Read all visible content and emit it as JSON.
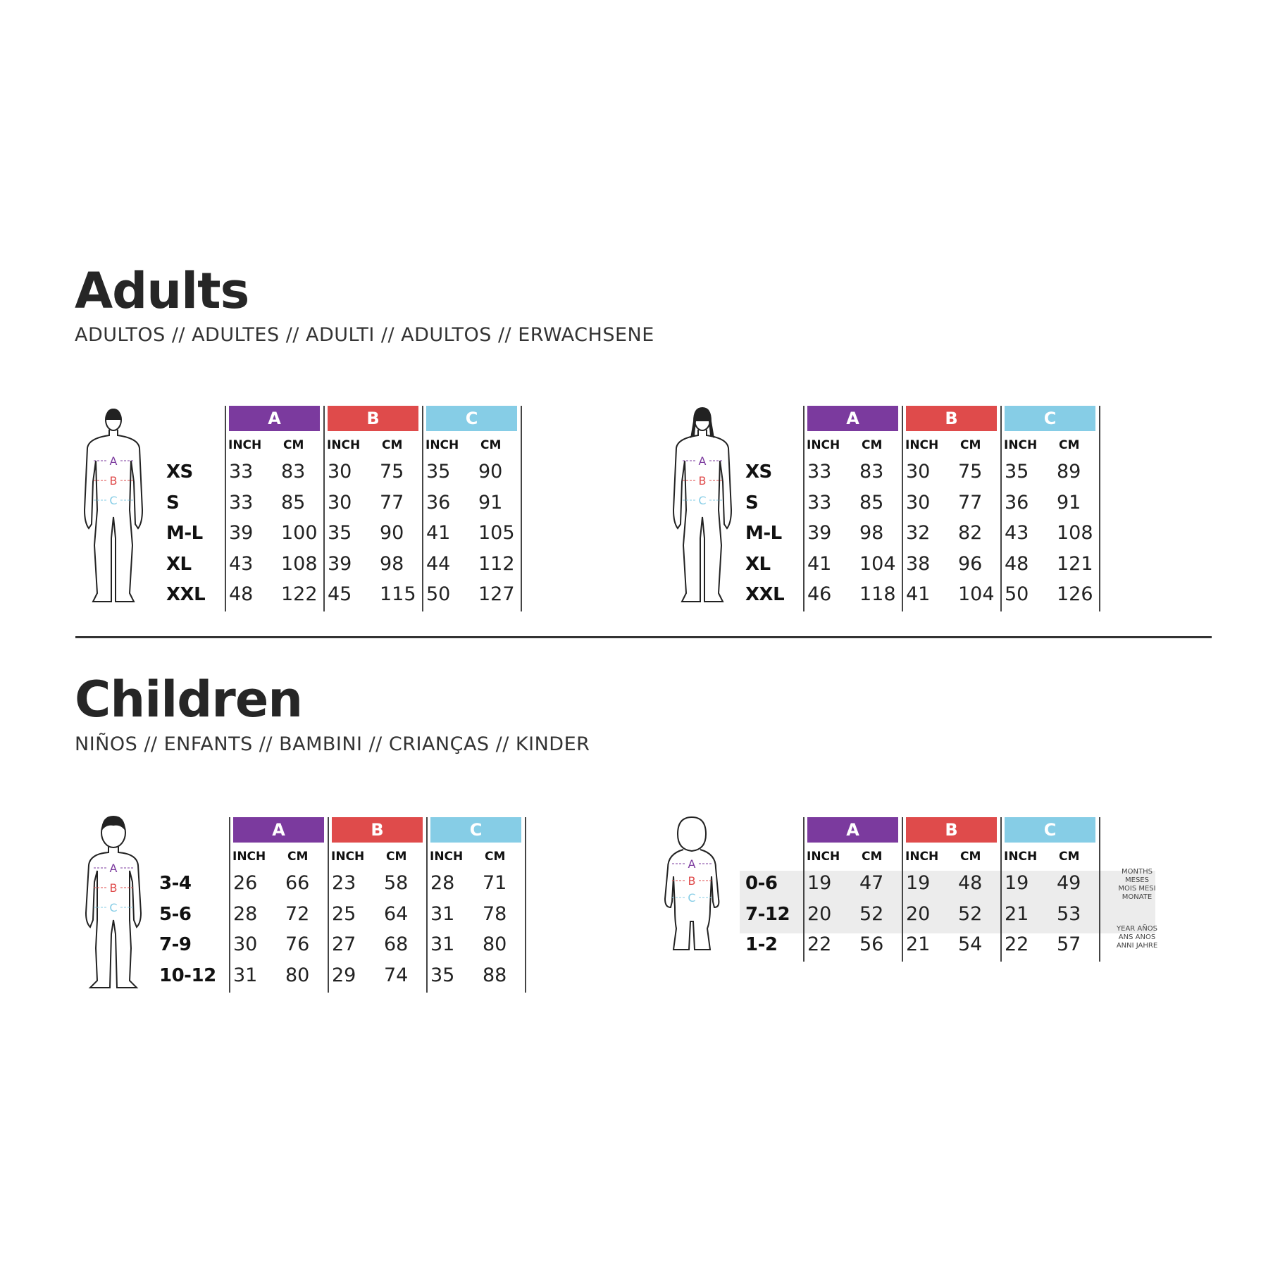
{
  "colors": {
    "A": "#7b3a9e",
    "B": "#df4b4b",
    "C": "#86cde6"
  },
  "adults": {
    "title": "Adults",
    "subtitle": "ADULTOS // ADULTES // ADULTI // ADULTOS // ERWACHSENE",
    "tables": [
      {
        "figure": "male-figure",
        "headers": [
          "A",
          "B",
          "C"
        ],
        "units": [
          "INCH",
          "CM",
          "INCH",
          "CM",
          "INCH",
          "CM"
        ],
        "rows": [
          {
            "size": "XS",
            "values": [
              "33",
              "83",
              "30",
              "75",
              "35",
              "90"
            ]
          },
          {
            "size": "S",
            "values": [
              "33",
              "85",
              "30",
              "77",
              "36",
              "91"
            ]
          },
          {
            "size": "M-L",
            "values": [
              "39",
              "100",
              "35",
              "90",
              "41",
              "105"
            ]
          },
          {
            "size": "XL",
            "values": [
              "43",
              "108",
              "39",
              "98",
              "44",
              "112"
            ]
          },
          {
            "size": "XXL",
            "values": [
              "48",
              "122",
              "45",
              "115",
              "50",
              "127"
            ]
          }
        ]
      },
      {
        "figure": "female-figure",
        "headers": [
          "A",
          "B",
          "C"
        ],
        "units": [
          "INCH",
          "CM",
          "INCH",
          "CM",
          "INCH",
          "CM"
        ],
        "rows": [
          {
            "size": "XS",
            "values": [
              "33",
              "83",
              "30",
              "75",
              "35",
              "89"
            ]
          },
          {
            "size": "S",
            "values": [
              "33",
              "85",
              "30",
              "77",
              "36",
              "91"
            ]
          },
          {
            "size": "M-L",
            "values": [
              "39",
              "98",
              "32",
              "82",
              "43",
              "108"
            ]
          },
          {
            "size": "XL",
            "values": [
              "41",
              "104",
              "38",
              "96",
              "48",
              "121"
            ]
          },
          {
            "size": "XXL",
            "values": [
              "46",
              "118",
              "41",
              "104",
              "50",
              "126"
            ]
          }
        ]
      }
    ]
  },
  "children": {
    "title": "Children",
    "subtitle": "NIÑOS // ENFANTS // BAMBINI // CRIANÇAS // KINDER",
    "tables": [
      {
        "figure": "child-figure",
        "headers": [
          "A",
          "B",
          "C"
        ],
        "units": [
          "INCH",
          "CM",
          "INCH",
          "CM",
          "INCH",
          "CM"
        ],
        "rows": [
          {
            "size": "3-4",
            "values": [
              "26",
              "66",
              "23",
              "58",
              "28",
              "71"
            ]
          },
          {
            "size": "5-6",
            "values": [
              "28",
              "72",
              "25",
              "64",
              "31",
              "78"
            ]
          },
          {
            "size": "7-9",
            "values": [
              "30",
              "76",
              "27",
              "68",
              "31",
              "80"
            ]
          },
          {
            "size": "10-12",
            "values": [
              "31",
              "80",
              "29",
              "74",
              "35",
              "88"
            ]
          }
        ]
      },
      {
        "figure": "baby-figure",
        "headers": [
          "A",
          "B",
          "C"
        ],
        "units": [
          "INCH",
          "CM",
          "INCH",
          "CM",
          "INCH",
          "CM"
        ],
        "rows": [
          {
            "size": "0-6",
            "values": [
              "19",
              "47",
              "19",
              "48",
              "19",
              "49"
            ]
          },
          {
            "size": "7-12",
            "values": [
              "20",
              "52",
              "20",
              "52",
              "21",
              "53"
            ]
          },
          {
            "size": "1-2",
            "values": [
              "22",
              "56",
              "21",
              "54",
              "22",
              "57"
            ]
          }
        ],
        "notes": {
          "months": [
            "MONTHS",
            "MESES",
            "MOIS MESI",
            "MONATE"
          ],
          "years": [
            "YEAR AÑOS",
            "ANS ANOS",
            "ANNI JAHRE"
          ]
        }
      }
    ]
  }
}
